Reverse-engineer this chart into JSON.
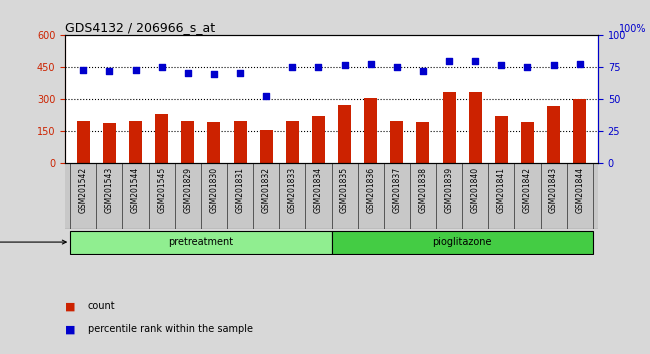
{
  "title": "GDS4132 / 206966_s_at",
  "samples": [
    "GSM201542",
    "GSM201543",
    "GSM201544",
    "GSM201545",
    "GSM201829",
    "GSM201830",
    "GSM201831",
    "GSM201832",
    "GSM201833",
    "GSM201834",
    "GSM201835",
    "GSM201836",
    "GSM201837",
    "GSM201838",
    "GSM201839",
    "GSM201840",
    "GSM201841",
    "GSM201842",
    "GSM201843",
    "GSM201844"
  ],
  "counts": [
    200,
    190,
    200,
    230,
    200,
    195,
    200,
    155,
    200,
    220,
    275,
    305,
    200,
    195,
    335,
    335,
    220,
    195,
    270,
    300
  ],
  "percentiles": [
    73,
    72,
    73,
    75,
    71,
    70,
    71,
    53,
    75,
    75,
    77,
    78,
    75,
    72,
    80,
    80,
    77,
    75,
    77,
    78
  ],
  "groups": [
    "pretreatment",
    "pretreatment",
    "pretreatment",
    "pretreatment",
    "pretreatment",
    "pretreatment",
    "pretreatment",
    "pretreatment",
    "pretreatment",
    "pretreatment",
    "pioglitazone",
    "pioglitazone",
    "pioglitazone",
    "pioglitazone",
    "pioglitazone",
    "pioglitazone",
    "pioglitazone",
    "pioglitazone",
    "pioglitazone",
    "pioglitazone"
  ],
  "bar_color": "#CC2200",
  "dot_color": "#0000CC",
  "pre_color": "#90EE90",
  "pio_color": "#44CC44",
  "tick_bg_color": "#c8c8c8",
  "ylim_left": [
    0,
    600
  ],
  "ylim_right": [
    0,
    100
  ],
  "yticks_left": [
    0,
    150,
    300,
    450,
    600
  ],
  "yticks_right": [
    0,
    25,
    50,
    75,
    100
  ],
  "background_color": "#d8d8d8",
  "plot_background": "#ffffff",
  "legend_count": "count",
  "legend_pct": "percentile rank within the sample"
}
